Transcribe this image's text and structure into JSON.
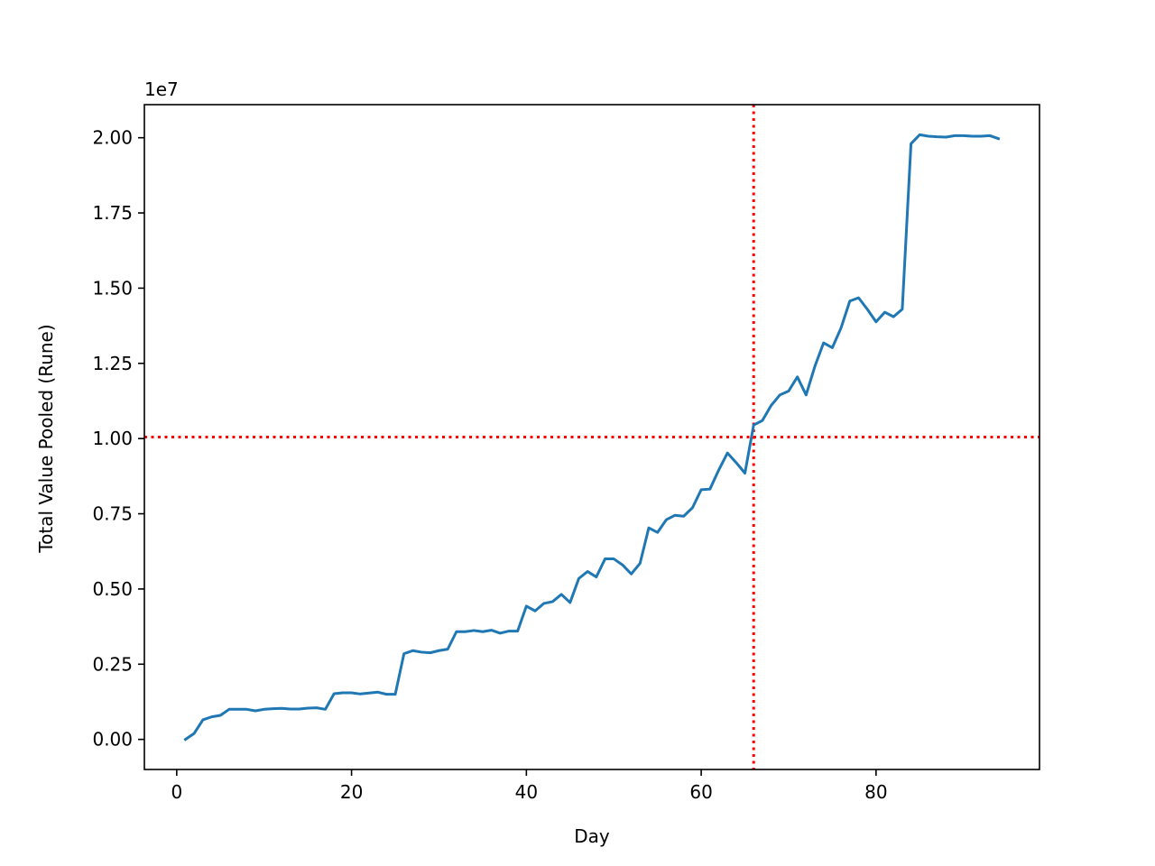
{
  "chart_data": {
    "type": "line",
    "title": "",
    "xlabel": "Day",
    "ylabel": "Total Value Pooled (Rune)",
    "y_offset_label": "1e7",
    "y_multiplier": 10000000,
    "xlim": [
      -3.7,
      98.7
    ],
    "ylim": [
      -0.1,
      2.11
    ],
    "x_ticks": [
      0,
      20,
      40,
      60,
      80
    ],
    "x_tick_labels": [
      "0",
      "20",
      "40",
      "60",
      "80"
    ],
    "y_ticks": [
      0.0,
      0.25,
      0.5,
      0.75,
      1.0,
      1.25,
      1.5,
      1.75,
      2.0
    ],
    "y_tick_labels": [
      "0.00",
      "0.25",
      "0.50",
      "0.75",
      "1.00",
      "1.25",
      "1.50",
      "1.75",
      "2.00"
    ],
    "grid": false,
    "legend": "none",
    "series": [
      {
        "color": "#1f77b4",
        "x": [
          1,
          2,
          3,
          4,
          5,
          6,
          7,
          8,
          9,
          10,
          11,
          12,
          13,
          14,
          15,
          16,
          17,
          18,
          19,
          20,
          21,
          22,
          23,
          24,
          25,
          26,
          27,
          28,
          29,
          30,
          31,
          32,
          33,
          34,
          35,
          36,
          37,
          38,
          39,
          40,
          41,
          42,
          43,
          44,
          45,
          46,
          47,
          48,
          49,
          50,
          51,
          52,
          53,
          54,
          55,
          56,
          57,
          58,
          59,
          60,
          61,
          62,
          63,
          64,
          65,
          66,
          67,
          68,
          69,
          70,
          71,
          72,
          73,
          74,
          75,
          76,
          77,
          78,
          79,
          80,
          81,
          82,
          83,
          84,
          85,
          86,
          87,
          88,
          89,
          90,
          91,
          92,
          93,
          94
        ],
        "values": [
          0.0,
          0.02,
          0.065,
          0.075,
          0.08,
          0.1,
          0.1,
          0.1,
          0.095,
          0.1,
          0.102,
          0.103,
          0.101,
          0.101,
          0.104,
          0.105,
          0.1,
          0.152,
          0.155,
          0.155,
          0.151,
          0.154,
          0.157,
          0.15,
          0.15,
          0.285,
          0.295,
          0.29,
          0.288,
          0.295,
          0.3,
          0.358,
          0.358,
          0.362,
          0.358,
          0.363,
          0.353,
          0.36,
          0.36,
          0.443,
          0.427,
          0.452,
          0.458,
          0.482,
          0.455,
          0.535,
          0.558,
          0.54,
          0.6,
          0.6,
          0.58,
          0.55,
          0.585,
          0.703,
          0.688,
          0.73,
          0.745,
          0.742,
          0.77,
          0.83,
          0.832,
          0.895,
          0.952,
          0.92,
          0.885,
          1.045,
          1.06,
          1.11,
          1.145,
          1.158,
          1.205,
          1.145,
          1.24,
          1.318,
          1.302,
          1.368,
          1.457,
          1.468,
          1.43,
          1.388,
          1.42,
          1.405,
          1.43,
          1.98,
          2.01,
          2.005,
          2.003,
          2.002,
          2.007,
          2.007,
          2.005,
          2.005,
          2.007,
          1.997
        ]
      }
    ],
    "reference_lines": [
      {
        "orientation": "vertical",
        "x": 66,
        "color": "#ff0000",
        "style": "dotted"
      },
      {
        "orientation": "horizontal",
        "y": 1.005,
        "color": "#ff0000",
        "style": "dotted"
      }
    ]
  }
}
